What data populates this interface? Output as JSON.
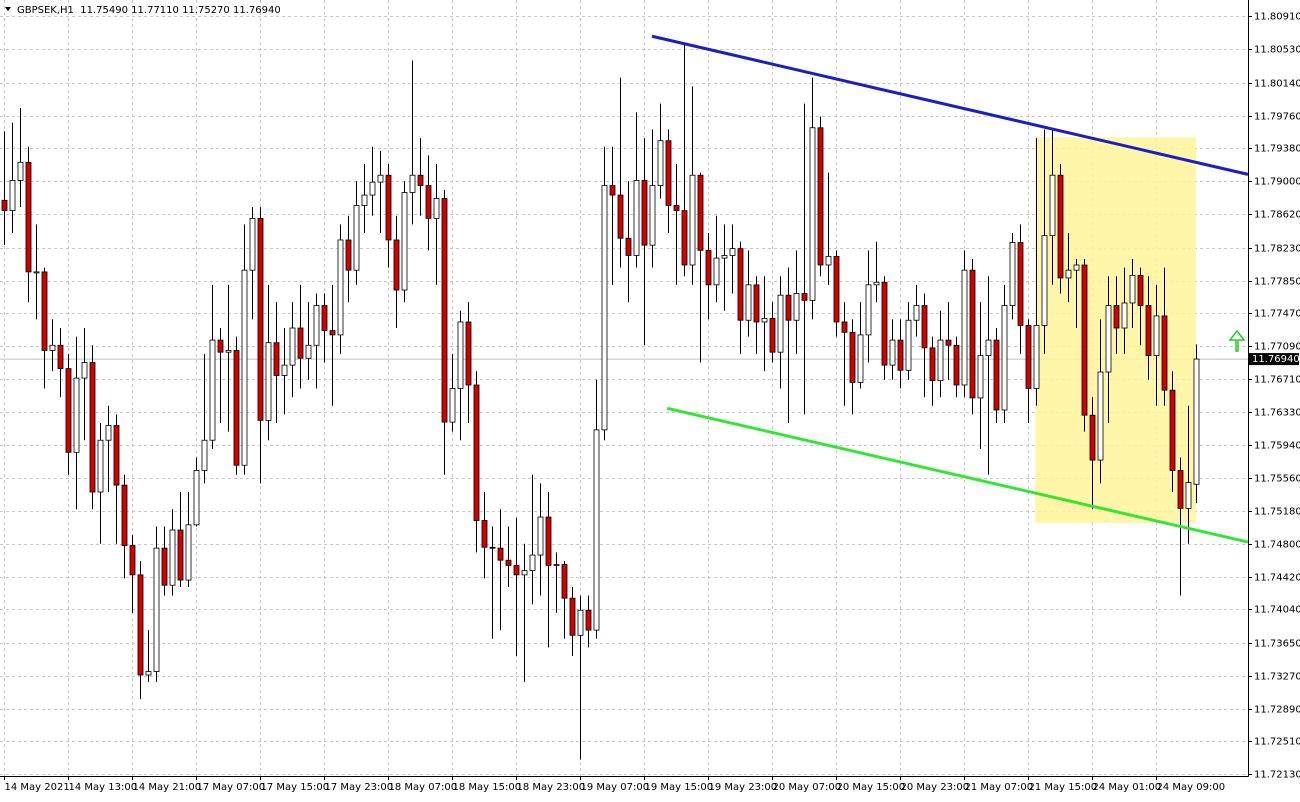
{
  "chart_data": {
    "type": "candlestick",
    "title": "GBPSEK,H1  11.75490 11.77110 11.75270 11.76940",
    "categories": [
      "14 May 2021",
      null,
      null,
      null,
      null,
      null,
      null,
      null,
      "14 May 13:00",
      null,
      null,
      null,
      null,
      null,
      null,
      null,
      "14 May 21:00",
      null,
      null,
      null,
      null,
      null,
      null,
      null,
      "17 May 07:00",
      null,
      null,
      null,
      null,
      null,
      null,
      null,
      "17 May 15:00",
      null,
      null,
      null,
      null,
      null,
      null,
      null,
      "17 May 23:00",
      null,
      null,
      null,
      null,
      null,
      null,
      null,
      "18 May 07:00",
      null,
      null,
      null,
      null,
      null,
      null,
      null,
      "18 May 15:00",
      null,
      null,
      null,
      null,
      null,
      null,
      null,
      "18 May 23:00",
      null,
      null,
      null,
      null,
      null,
      null,
      null,
      "19 May 07:00",
      null,
      null,
      null,
      null,
      null,
      null,
      null,
      "19 May 15:00",
      null,
      null,
      null,
      null,
      null,
      null,
      null,
      "19 May 23:00",
      null,
      null,
      null,
      null,
      null,
      null,
      null,
      "20 May 07:00",
      null,
      null,
      null,
      null,
      null,
      null,
      null,
      "20 May 15:00",
      null,
      null,
      null,
      null,
      null,
      null,
      null,
      "20 May 23:00",
      null,
      null,
      null,
      null,
      null,
      null,
      null,
      "21 May 07:00",
      null,
      null,
      null,
      null,
      null,
      null,
      null,
      "21 May 15:00",
      null,
      null,
      null,
      null,
      null,
      null,
      null,
      "24 May 01:00",
      null,
      null,
      null,
      null,
      null,
      null,
      null,
      "24 May 09:00",
      null,
      null,
      null,
      null,
      null
    ],
    "open": [
      11.7878,
      11.7866,
      11.7901,
      11.7922,
      11.7795,
      11.7795,
      11.7704,
      11.771,
      11.7683,
      11.7586,
      11.7672,
      11.769,
      11.754,
      11.76,
      11.7617,
      11.7548,
      11.7478,
      11.7444,
      11.7328,
      11.7332,
      11.7475,
      11.7432,
      11.7496,
      11.7438,
      11.7502,
      11.7565,
      11.76,
      11.7716,
      11.7702,
      11.7704,
      11.7571,
      11.7797,
      11.7857,
      11.7623,
      11.7713,
      11.7675,
      11.7687,
      11.773,
      11.7695,
      11.771,
      11.7756,
      11.7727,
      11.7722,
      11.7832,
      11.7797,
      11.7872,
      11.7884,
      11.7899,
      11.7907,
      11.7832,
      11.7774,
      11.7887,
      11.7907,
      11.7895,
      11.7857,
      11.788,
      11.7621,
      11.766,
      11.7737,
      11.7664,
      11.7507,
      11.7476,
      11.7475,
      11.7461,
      11.7455,
      11.7444,
      11.7449,
      11.7467,
      11.7511,
      11.7455,
      11.7456,
      11.7417,
      11.7374,
      11.7403,
      11.738,
      11.7612,
      11.7895,
      11.7884,
      11.7834,
      11.7814,
      11.7901,
      11.7826,
      11.7895,
      11.7947,
      11.7872,
      11.7866,
      11.7803,
      11.7907,
      11.782,
      11.778,
      11.7811,
      11.7814,
      11.7822,
      11.7739,
      11.778,
      11.7737,
      11.7741,
      11.7702,
      11.7768,
      11.7739,
      11.777,
      11.7762,
      11.7962,
      11.7803,
      11.7813,
      11.7737,
      11.7725,
      11.7667,
      11.7722,
      11.778,
      11.7783,
      11.7687,
      11.7716,
      11.7681,
      11.7739,
      11.7756,
      11.7707,
      11.7669,
      11.7716,
      11.771,
      11.7664,
      11.7797,
      11.7649,
      11.7698,
      11.7716,
      11.7635,
      11.7756,
      11.7829,
      11.7733,
      11.766,
      11.7733,
      11.7837,
      11.7907,
      11.7788,
      11.7797,
      11.7803,
      11.7629,
      11.7577,
      11.7679,
      11.7756,
      11.773,
      11.7759,
      11.7791,
      11.7756,
      11.7698,
      11.7744,
      11.7658,
      11.7565,
      11.7521,
      11.7549
    ],
    "high": [
      11.7958,
      11.7968,
      11.7985,
      11.794,
      11.785,
      11.78,
      11.774,
      11.773,
      11.77,
      11.772,
      11.773,
      11.771,
      11.762,
      11.764,
      11.763,
      11.756,
      11.749,
      11.746,
      11.738,
      11.75,
      11.75,
      11.752,
      11.754,
      11.754,
      11.758,
      11.77,
      11.778,
      11.773,
      11.778,
      11.772,
      11.785,
      11.787,
      11.787,
      11.778,
      11.776,
      11.773,
      11.776,
      11.778,
      11.776,
      11.777,
      11.777,
      11.778,
      11.785,
      11.786,
      11.79,
      11.792,
      11.794,
      11.7935,
      11.792,
      11.786,
      11.79,
      11.804,
      11.795,
      11.793,
      11.792,
      11.789,
      11.77,
      11.775,
      11.776,
      11.768,
      11.754,
      11.75,
      11.752,
      11.75,
      11.751,
      11.748,
      11.756,
      11.755,
      11.754,
      11.747,
      11.746,
      11.743,
      11.742,
      11.742,
      11.767,
      11.794,
      11.794,
      11.802,
      11.79,
      11.798,
      11.795,
      11.796,
      11.799,
      11.796,
      11.792,
      11.806,
      11.801,
      11.791,
      11.784,
      11.786,
      11.785,
      11.785,
      11.783,
      11.782,
      11.779,
      11.779,
      11.776,
      11.779,
      11.78,
      11.782,
      11.799,
      11.802,
      11.7975,
      11.791,
      11.782,
      11.776,
      11.774,
      11.776,
      11.782,
      11.783,
      11.779,
      11.774,
      11.774,
      11.776,
      11.778,
      11.777,
      11.772,
      11.775,
      11.776,
      11.772,
      11.782,
      11.781,
      11.776,
      11.779,
      11.773,
      11.778,
      11.784,
      11.785,
      11.774,
      11.795,
      11.796,
      11.796,
      11.792,
      11.784,
      11.781,
      11.781,
      11.765,
      11.774,
      11.779,
      11.779,
      11.78,
      11.781,
      11.78,
      11.779,
      11.778,
      11.78,
      11.768,
      11.758,
      11.764,
      11.7711
    ],
    "low": [
      11.7826,
      11.784,
      11.787,
      11.776,
      11.774,
      11.766,
      11.768,
      11.765,
      11.756,
      11.752,
      11.76,
      11.752,
      11.748,
      11.754,
      11.748,
      11.744,
      11.74,
      11.73,
      11.732,
      11.732,
      11.742,
      11.742,
      11.743,
      11.743,
      11.75,
      11.755,
      11.759,
      11.762,
      11.761,
      11.756,
      11.756,
      11.774,
      11.755,
      11.76,
      11.762,
      11.763,
      11.765,
      11.766,
      11.767,
      11.766,
      11.769,
      11.764,
      11.77,
      11.776,
      11.778,
      11.784,
      11.786,
      11.784,
      11.78,
      11.773,
      11.776,
      11.785,
      11.786,
      11.782,
      11.778,
      11.756,
      11.761,
      11.76,
      11.762,
      11.747,
      11.744,
      11.737,
      11.738,
      11.743,
      11.735,
      11.732,
      11.741,
      11.742,
      11.736,
      11.74,
      11.737,
      11.735,
      11.723,
      11.736,
      11.737,
      11.76,
      11.778,
      11.78,
      11.776,
      11.78,
      11.771,
      11.78,
      11.788,
      11.784,
      11.778,
      11.779,
      11.778,
      11.769,
      11.774,
      11.776,
      11.775,
      11.777,
      11.77,
      11.772,
      11.77,
      11.768,
      11.769,
      11.766,
      11.762,
      11.77,
      11.763,
      11.774,
      11.779,
      11.778,
      11.772,
      11.764,
      11.763,
      11.766,
      11.769,
      11.776,
      11.767,
      11.767,
      11.766,
      11.767,
      11.772,
      11.765,
      11.764,
      11.765,
      11.767,
      11.765,
      11.765,
      11.763,
      11.759,
      11.756,
      11.762,
      11.762,
      11.774,
      11.77,
      11.762,
      11.764,
      11.77,
      11.778,
      11.777,
      11.776,
      11.773,
      11.761,
      11.752,
      11.755,
      11.762,
      11.77,
      11.77,
      11.773,
      11.771,
      11.767,
      11.764,
      11.764,
      11.754,
      11.742,
      11.748,
      11.7527
    ],
    "close": [
      11.7866,
      11.7901,
      11.7922,
      11.7795,
      11.7795,
      11.7704,
      11.771,
      11.7683,
      11.7586,
      11.7672,
      11.769,
      11.754,
      11.76,
      11.7617,
      11.7548,
      11.7478,
      11.7444,
      11.7328,
      11.7332,
      11.7475,
      11.7432,
      11.7496,
      11.7438,
      11.7502,
      11.7565,
      11.76,
      11.7716,
      11.7702,
      11.7704,
      11.7571,
      11.7797,
      11.7857,
      11.7623,
      11.7713,
      11.7675,
      11.7687,
      11.773,
      11.7695,
      11.771,
      11.7756,
      11.7727,
      11.7722,
      11.7832,
      11.7797,
      11.7872,
      11.7884,
      11.7899,
      11.7907,
      11.7832,
      11.7774,
      11.7887,
      11.7907,
      11.7895,
      11.7857,
      11.788,
      11.7621,
      11.766,
      11.7737,
      11.7664,
      11.7507,
      11.7476,
      11.7475,
      11.7461,
      11.7455,
      11.7444,
      11.7449,
      11.7467,
      11.7511,
      11.7455,
      11.7456,
      11.7417,
      11.7374,
      11.7403,
      11.738,
      11.7612,
      11.7895,
      11.7884,
      11.7834,
      11.7814,
      11.7901,
      11.7826,
      11.7895,
      11.7947,
      11.7872,
      11.7866,
      11.7803,
      11.7907,
      11.782,
      11.778,
      11.7811,
      11.7814,
      11.7822,
      11.7739,
      11.778,
      11.7737,
      11.7741,
      11.7702,
      11.7768,
      11.7739,
      11.777,
      11.7762,
      11.7962,
      11.7803,
      11.7813,
      11.7737,
      11.7725,
      11.7667,
      11.7722,
      11.778,
      11.7783,
      11.7687,
      11.7716,
      11.7681,
      11.7739,
      11.7756,
      11.7707,
      11.7669,
      11.7716,
      11.771,
      11.7664,
      11.7797,
      11.7649,
      11.7698,
      11.7716,
      11.7635,
      11.7756,
      11.7829,
      11.7733,
      11.766,
      11.7733,
      11.7837,
      11.7907,
      11.7788,
      11.7797,
      11.7803,
      11.7629,
      11.7577,
      11.7679,
      11.7756,
      11.773,
      11.7759,
      11.7791,
      11.7756,
      11.7698,
      11.7744,
      11.7658,
      11.7565,
      11.7521,
      11.7551,
      11.7694
    ],
    "up_color": "#ffffff",
    "down_color": "#d40000",
    "xlim": [
      -0.5,
      155.5
    ],
    "ylim": [
      11.7211,
      11.811
    ],
    "yticks": [
      {
        "value": 11.8091,
        "label": "11.80910"
      },
      {
        "value": 11.8053,
        "label": "11.80530"
      },
      {
        "value": 11.8014,
        "label": "11.80140"
      },
      {
        "value": 11.7976,
        "label": "11.79760"
      },
      {
        "value": 11.7938,
        "label": "11.79380"
      },
      {
        "value": 11.79,
        "label": "11.79000"
      },
      {
        "value": 11.7862,
        "label": "11.78620"
      },
      {
        "value": 11.7823,
        "label": "11.78230"
      },
      {
        "value": 11.7785,
        "label": "11.77850"
      },
      {
        "value": 11.7747,
        "label": "11.77470"
      },
      {
        "value": 11.7709,
        "label": "11.77090"
      },
      {
        "value": 11.7671,
        "label": "11.76710"
      },
      {
        "value": 11.7633,
        "label": "11.76330"
      },
      {
        "value": 11.7594,
        "label": "11.75940"
      },
      {
        "value": 11.7556,
        "label": "11.75560"
      },
      {
        "value": 11.7518,
        "label": "11.75180"
      },
      {
        "value": 11.748,
        "label": "11.74800"
      },
      {
        "value": 11.7442,
        "label": "11.74420"
      },
      {
        "value": 11.7404,
        "label": "11.74040"
      },
      {
        "value": 11.7365,
        "label": "11.73650"
      },
      {
        "value": 11.7327,
        "label": "11.73270"
      },
      {
        "value": 11.7289,
        "label": "11.72890"
      },
      {
        "value": 11.7251,
        "label": "11.72510"
      },
      {
        "value": 11.7213,
        "label": "11.72130"
      }
    ],
    "grid": true,
    "current_price": {
      "value": 11.7694,
      "label": "11.76940"
    },
    "trendlines": [
      {
        "color": "#1e1ec8",
        "x": [
          81,
          155.5
        ],
        "y": [
          11.8068,
          11.7908
        ]
      },
      {
        "color": "#33e633",
        "x": [
          82.9,
          155.5
        ],
        "y": [
          11.7637,
          11.7482
        ]
      }
    ],
    "highlight": {
      "color": "#fff59a",
      "x": [
        128.9,
        149
      ],
      "y": [
        11.7951,
        11.7504
      ]
    }
  }
}
